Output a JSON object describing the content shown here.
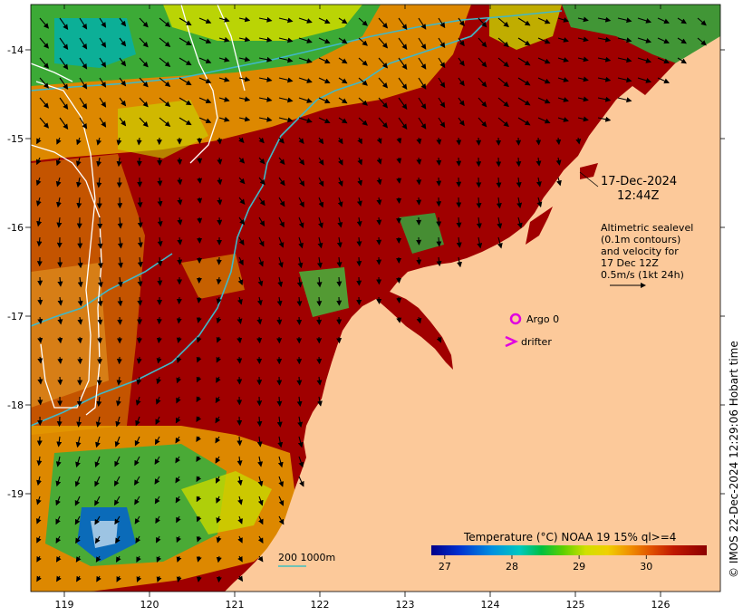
{
  "header": {
    "date": "17-Dec-2024",
    "time": "12:44Z"
  },
  "annotation": {
    "lines": [
      "Altimetric sealevel",
      "(0.1m contours)",
      "and velocity for",
      "17 Dec 12Z",
      "0.5m/s (1kt 24h)"
    ]
  },
  "legend": {
    "argo": "Argo 0",
    "drifter": "drifter",
    "argo_color": "#e000e0",
    "drifter_color": "#e000e0"
  },
  "scale_bar": {
    "label": "200  1000m",
    "color": "#40c0c0"
  },
  "colorbar": {
    "title": "Temperature (°C) NOAA 19 15% ql>=4",
    "ticks": [
      "27",
      "28",
      "29",
      "30"
    ],
    "range": [
      26.8,
      30.9
    ]
  },
  "axes": {
    "lon_ticks": [
      "119",
      "120",
      "121",
      "122",
      "123",
      "124",
      "125",
      "126"
    ],
    "lat_ticks": [
      "-14",
      "-15",
      "-16",
      "-17",
      "-18",
      "-19"
    ]
  },
  "credit": "©  IMOS 22-Dec-2024 12:29:06 Hobart time",
  "colors": {
    "land": "#fcc99a",
    "sea_warm": "#a00000",
    "contour_isobath": "#40b8c8",
    "contour_sealevel": "#ffffff",
    "vectors": "#000000"
  }
}
